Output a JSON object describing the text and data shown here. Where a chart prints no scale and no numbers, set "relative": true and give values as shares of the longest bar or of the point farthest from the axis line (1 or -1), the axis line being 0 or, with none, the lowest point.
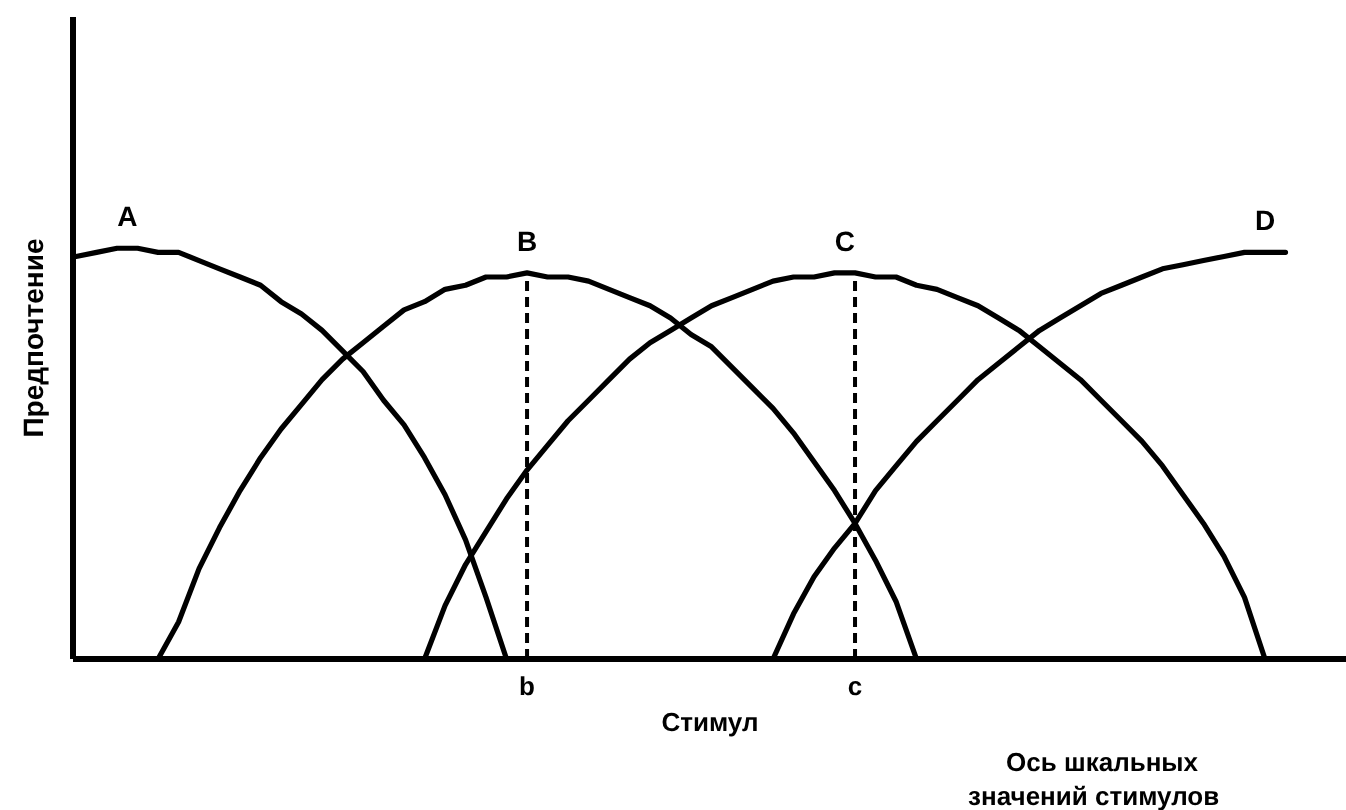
{
  "chart_data": {
    "type": "line",
    "relative": true,
    "xlabel": "Стимул",
    "ylabel": "Предпочтение",
    "annotations": [
      "Ось шкальных\nзначений стимулов"
    ],
    "categories": [
      null,
      null,
      null,
      null,
      null,
      null,
      null,
      null,
      null,
      null,
      null,
      null,
      null,
      null,
      null,
      null,
      null,
      null,
      null,
      null,
      null,
      null,
      "b",
      null,
      null,
      null,
      null,
      null,
      null,
      null,
      null,
      null,
      null,
      null,
      null,
      null,
      null,
      null,
      "c",
      null,
      null,
      null,
      null,
      null,
      null,
      null,
      null,
      null,
      null,
      null,
      null,
      null,
      null,
      null,
      null,
      null,
      null,
      null,
      null,
      null
    ],
    "series": [
      {
        "name": "A",
        "color": "#000000",
        "values": [
          0.98,
          0.99,
          1.0,
          1.0,
          0.99,
          0.99,
          0.97,
          0.95,
          0.93,
          0.91,
          0.87,
          0.84,
          0.8,
          0.75,
          0.7,
          0.63,
          0.57,
          0.49,
          0.4,
          0.29,
          0.15,
          0,
          null,
          null,
          null,
          null,
          null,
          null,
          null,
          null,
          null,
          null,
          null,
          null,
          null,
          null,
          null,
          null,
          null,
          null,
          null,
          null,
          null,
          null,
          null,
          null,
          null,
          null,
          null,
          null,
          null,
          null,
          null,
          null,
          null,
          null,
          null,
          null,
          null,
          null
        ]
      },
      {
        "name": "B",
        "color": "#000000",
        "values": [
          null,
          null,
          null,
          null,
          0,
          0.09,
          0.22,
          0.32,
          0.41,
          0.49,
          0.56,
          0.62,
          0.68,
          0.73,
          0.77,
          0.81,
          0.85,
          0.87,
          0.9,
          0.91,
          0.93,
          0.93,
          0.94,
          0.93,
          0.93,
          0.92,
          0.9,
          0.88,
          0.86,
          0.83,
          0.79,
          0.76,
          0.71,
          0.66,
          0.61,
          0.55,
          0.48,
          0.41,
          0.33,
          0.24,
          0.14,
          0,
          null,
          null,
          null,
          null,
          null,
          null,
          null,
          null,
          null,
          null,
          null,
          null,
          null,
          null,
          null,
          null,
          null,
          null
        ]
      },
      {
        "name": "C",
        "color": "#000000",
        "values": [
          null,
          null,
          null,
          null,
          null,
          null,
          null,
          null,
          null,
          null,
          null,
          null,
          null,
          null,
          null,
          null,
          null,
          0,
          0.13,
          0.23,
          0.31,
          0.39,
          0.46,
          0.52,
          0.58,
          0.63,
          0.68,
          0.73,
          0.77,
          0.8,
          0.83,
          0.86,
          0.88,
          0.9,
          0.92,
          0.93,
          0.93,
          0.94,
          0.94,
          0.93,
          0.93,
          0.91,
          0.9,
          0.88,
          0.86,
          0.83,
          0.8,
          0.76,
          0.72,
          0.68,
          0.63,
          0.58,
          0.53,
          0.47,
          0.4,
          0.33,
          0.25,
          0.15,
          0,
          null
        ]
      },
      {
        "name": "D",
        "color": "#000000",
        "values": [
          null,
          null,
          null,
          null,
          null,
          null,
          null,
          null,
          null,
          null,
          null,
          null,
          null,
          null,
          null,
          null,
          null,
          null,
          null,
          null,
          null,
          null,
          null,
          null,
          null,
          null,
          null,
          null,
          null,
          null,
          null,
          null,
          null,
          null,
          0,
          0.11,
          0.2,
          0.27,
          0.33,
          0.41,
          0.47,
          0.53,
          0.58,
          0.63,
          0.68,
          0.72,
          0.76,
          0.8,
          0.83,
          0.86,
          0.89,
          0.91,
          0.93,
          0.95,
          0.96,
          0.97,
          0.98,
          0.99,
          0.99,
          0.99
        ]
      }
    ],
    "ref_lines": [
      {
        "axis": "x",
        "value": "b",
        "color": "#000000",
        "line_style": "dashed"
      },
      {
        "axis": "x",
        "value": "c",
        "color": "#000000",
        "line_style": "dashed"
      }
    ]
  }
}
